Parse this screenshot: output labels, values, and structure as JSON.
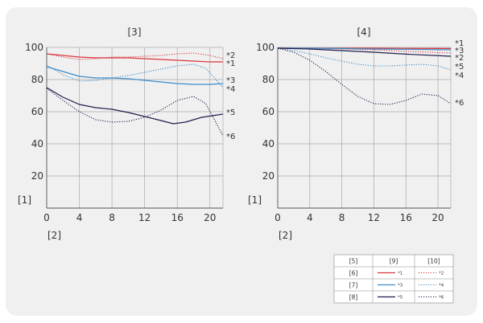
{
  "chart_data": [
    {
      "type": "line",
      "title": "[3]",
      "xlabel": "[2]",
      "ylabel": "[1]",
      "xlim": [
        0,
        21.6
      ],
      "ylim": [
        0,
        100
      ],
      "xticks": [
        0,
        4,
        8,
        12,
        16,
        20
      ],
      "yticks": [
        20,
        40,
        60,
        80,
        100
      ],
      "grid": true,
      "series": [
        {
          "name": "*1",
          "color": "#d9363e",
          "dash": "solid",
          "points": [
            [
              0,
              96
            ],
            [
              2,
              95
            ],
            [
              4,
              94
            ],
            [
              6,
              93.5
            ],
            [
              8,
              93.5
            ],
            [
              10,
              93.5
            ],
            [
              12,
              93
            ],
            [
              14,
              92.5
            ],
            [
              16,
              92
            ],
            [
              18,
              91.5
            ],
            [
              20,
              91
            ],
            [
              21.6,
              91
            ]
          ]
        },
        {
          "name": "*2",
          "color": "#d9363e",
          "dash": "dotted",
          "points": [
            [
              0,
              96
            ],
            [
              2,
              94
            ],
            [
              4,
              92.5
            ],
            [
              6,
              93
            ],
            [
              8,
              94
            ],
            [
              10,
              94
            ],
            [
              12,
              94.5
            ],
            [
              14,
              95
            ],
            [
              16,
              96
            ],
            [
              18,
              96.5
            ],
            [
              20,
              95
            ],
            [
              21.6,
              93
            ]
          ]
        },
        {
          "name": "*3",
          "color": "#3c8cc8",
          "dash": "solid",
          "points": [
            [
              0,
              88
            ],
            [
              2,
              85
            ],
            [
              4,
              82
            ],
            [
              6,
              81
            ],
            [
              8,
              81
            ],
            [
              10,
              80.5
            ],
            [
              12,
              79.5
            ],
            [
              14,
              78.5
            ],
            [
              16,
              77.5
            ],
            [
              18,
              77
            ],
            [
              20,
              77
            ],
            [
              21.6,
              77.5
            ]
          ]
        },
        {
          "name": "*4",
          "color": "#3c8cc8",
          "dash": "dotted",
          "points": [
            [
              0,
              89
            ],
            [
              2,
              83
            ],
            [
              4,
              79
            ],
            [
              6,
              79.5
            ],
            [
              8,
              81
            ],
            [
              10,
              82.5
            ],
            [
              12,
              84.5
            ],
            [
              14,
              86.5
            ],
            [
              16,
              88.5
            ],
            [
              18,
              89.5
            ],
            [
              19.5,
              87
            ],
            [
              21.6,
              75
            ]
          ]
        },
        {
          "name": "*5",
          "color": "#1e1e50",
          "dash": "solid",
          "points": [
            [
              0,
              75
            ],
            [
              2,
              69
            ],
            [
              4,
              64.5
            ],
            [
              6,
              62.5
            ],
            [
              8,
              61.5
            ],
            [
              10,
              59.5
            ],
            [
              12,
              57
            ],
            [
              14,
              54.5
            ],
            [
              15.5,
              52.5
            ],
            [
              17,
              53.5
            ],
            [
              19,
              56.5
            ],
            [
              21.6,
              58.5
            ]
          ]
        },
        {
          "name": "*6",
          "color": "#1e1e50",
          "dash": "dotted",
          "points": [
            [
              0,
              74.5
            ],
            [
              2,
              67
            ],
            [
              4,
              60
            ],
            [
              6,
              55
            ],
            [
              8,
              53.5
            ],
            [
              10,
              54
            ],
            [
              12,
              56.5
            ],
            [
              14,
              61
            ],
            [
              16,
              67
            ],
            [
              18,
              69.5
            ],
            [
              19.5,
              65
            ],
            [
              21.6,
              45
            ]
          ]
        }
      ]
    },
    {
      "type": "line",
      "title": "[4]",
      "xlabel": "[2]",
      "ylabel": "[1]",
      "xlim": [
        0,
        21.6
      ],
      "ylim": [
        0,
        100
      ],
      "xticks": [
        0,
        4,
        8,
        12,
        16,
        20
      ],
      "yticks": [
        20,
        40,
        60,
        80,
        100
      ],
      "grid": true,
      "series": [
        {
          "name": "*1",
          "color": "#d9363e",
          "dash": "solid",
          "points": [
            [
              0,
              99.5
            ],
            [
              4,
              99.5
            ],
            [
              8,
              99.5
            ],
            [
              12,
              99.5
            ],
            [
              16,
              99.4
            ],
            [
              21.6,
              99.3
            ]
          ]
        },
        {
          "name": "*2",
          "color": "#d9363e",
          "dash": "dotted",
          "points": [
            [
              0,
              99.5
            ],
            [
              4,
              99.3
            ],
            [
              8,
              99
            ],
            [
              12,
              98.5
            ],
            [
              16,
              97.5
            ],
            [
              21.6,
              96.5
            ]
          ]
        },
        {
          "name": "*3",
          "color": "#3c8cc8",
          "dash": "solid",
          "points": [
            [
              0,
              99.5
            ],
            [
              4,
              99.5
            ],
            [
              8,
              99.3
            ],
            [
              12,
              99
            ],
            [
              16,
              98.8
            ],
            [
              21.6,
              98.5
            ]
          ]
        },
        {
          "name": "*4",
          "color": "#3c8cc8",
          "dash": "dotted",
          "points": [
            [
              0,
              99.5
            ],
            [
              2,
              98
            ],
            [
              4,
              96
            ],
            [
              6,
              93.5
            ],
            [
              8,
              91.5
            ],
            [
              10,
              89.5
            ],
            [
              12,
              88.5
            ],
            [
              14,
              88.5
            ],
            [
              16,
              89
            ],
            [
              18,
              89.5
            ],
            [
              20,
              88.5
            ],
            [
              21.6,
              86
            ]
          ]
        },
        {
          "name": "*5",
          "color": "#1e1e50",
          "dash": "solid",
          "points": [
            [
              0,
              99.5
            ],
            [
              4,
              99
            ],
            [
              8,
              98
            ],
            [
              12,
              97
            ],
            [
              16,
              95.8
            ],
            [
              21.6,
              94.5
            ]
          ]
        },
        {
          "name": "*6",
          "color": "#1e1e50",
          "dash": "dotted",
          "points": [
            [
              0,
              99.5
            ],
            [
              2,
              97
            ],
            [
              4,
              92
            ],
            [
              6,
              85
            ],
            [
              8,
              77
            ],
            [
              10,
              69.5
            ],
            [
              12,
              65
            ],
            [
              14,
              64.5
            ],
            [
              16,
              67
            ],
            [
              18,
              71
            ],
            [
              20,
              70
            ],
            [
              21.6,
              65
            ]
          ]
        }
      ]
    }
  ],
  "legend": {
    "corner": "[5]",
    "columns": [
      "[9]",
      "[10]"
    ],
    "rows": [
      {
        "label": "[6]",
        "solid": "*1",
        "dotted": "*2",
        "color": "#d9363e"
      },
      {
        "label": "[7]",
        "solid": "*3",
        "dotted": "*4",
        "color": "#3c8cc8"
      },
      {
        "label": "[8]",
        "solid": "*5",
        "dotted": "*6",
        "color": "#1e1e50"
      }
    ]
  },
  "right_labels": [
    [
      "*2",
      "*1",
      "*3",
      "*4",
      "*5",
      "*6"
    ],
    [
      "*1",
      "*3",
      "*2",
      "*5",
      "*4",
      "*6"
    ]
  ]
}
